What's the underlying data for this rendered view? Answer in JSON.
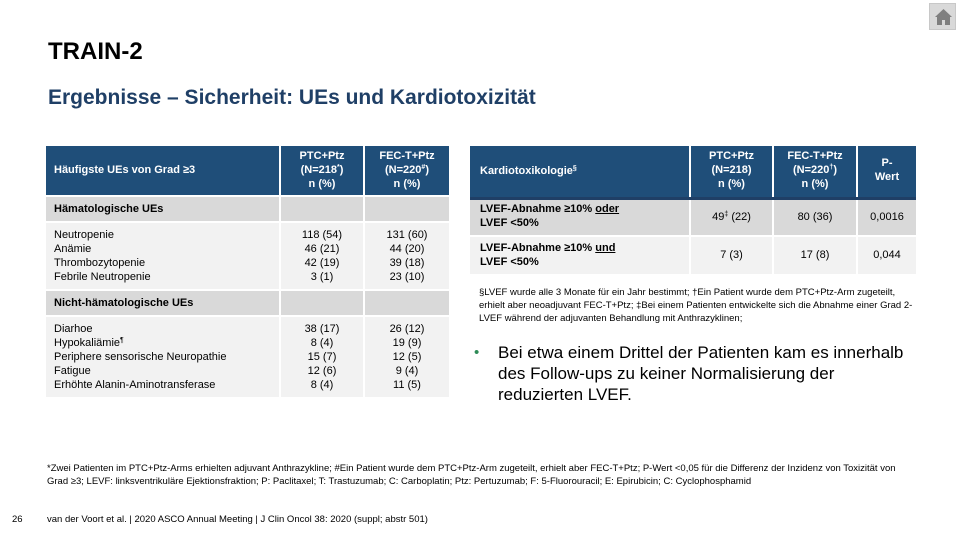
{
  "header": {
    "title": "TRAIN-2",
    "subtitle": "Ergebnisse – Sicherheit: UEs und Kardiotoxizität",
    "home_icon": "home-icon"
  },
  "ae_table": {
    "headers": {
      "col1": "Häufigste UEs von Grad ≥3",
      "col2_line1": "PTC+Ptz",
      "col2_line2_pre": "(N=218",
      "col2_line2_sup": "*",
      "col2_line2_post": ")",
      "col2_line3": "n (%)",
      "col3_line1": "FEC-T+Ptz",
      "col3_line2_pre": "(N=220",
      "col3_line2_sup": "#",
      "col3_line2_post": ")",
      "col3_line3": "n (%)"
    },
    "sections": [
      {
        "title": "Hämatologische UEs",
        "rows": [
          {
            "label": "Neutropenie",
            "sup": "",
            "ptc": "118 (54)",
            "fec": "131 (60)"
          },
          {
            "label": "Anämie",
            "sup": "",
            "ptc": "46 (21)",
            "fec": "44 (20)"
          },
          {
            "label": "Thrombozytopenie",
            "sup": "",
            "ptc": "42 (19)",
            "fec": "39 (18)"
          },
          {
            "label": "Febrile Neutropenie",
            "sup": "",
            "ptc": "3 (1)",
            "fec": "23 (10)"
          }
        ]
      },
      {
        "title": "Nicht-hämatologische UEs",
        "rows": [
          {
            "label": "Diarhoe",
            "sup": "",
            "ptc": "38 (17)",
            "fec": "26 (12)"
          },
          {
            "label": "Hypokaliämie",
            "sup": "¶",
            "ptc": "8 (4)",
            "fec": "19 (9)"
          },
          {
            "label": "Periphere sensorische Neuropathie",
            "sup": "",
            "ptc": "15 (7)",
            "fec": "12 (5)"
          },
          {
            "label": "Fatigue",
            "sup": "",
            "ptc": "12 (6)",
            "fec": "9 (4)"
          },
          {
            "label": "Erhöhte Alanin-Aminotransferase",
            "sup": "",
            "ptc": "8 (4)",
            "fec": "11 (5)"
          }
        ]
      }
    ]
  },
  "cardio_table": {
    "headers": {
      "col1": "Kardiotoxikologie",
      "col1_sup": "§",
      "col2_line1": "PTC+Ptz",
      "col2_line2": "(N=218)",
      "col2_line3": "n (%)",
      "col3_line1": "FEC-T+Ptz",
      "col3_line2_pre": "(N=220",
      "col3_line2_sup": "†",
      "col3_line2_post": ")",
      "col3_line3": "n (%)",
      "col4_line1": "P-",
      "col4_line2": "Wert"
    },
    "rows": [
      {
        "label_pre": "LVEF-Abnahme ≥10% ",
        "label_u": "oder",
        "label_post": "LVEF <50%",
        "ptc_val": "49",
        "ptc_sup": "‡",
        "ptc_rest": " (22)",
        "fec": "80 (36)",
        "p": "0,0016"
      },
      {
        "label_pre": "LVEF-Abnahme ≥10% ",
        "label_u": "und",
        "label_post": "LVEF <50%",
        "ptc_val": "7 (3)",
        "ptc_sup": "",
        "ptc_rest": "",
        "fec": "17 (8)",
        "p": "0,044"
      }
    ],
    "footnote": "§LVEF wurde alle 3 Monate für ein Jahr bestimmt; †Ein Patient wurde dem PTC+Ptz-Arm zugeteilt, erhielt aber neoadjuvant FEC-T+Ptz; ‡Bei einem Patienten entwickelte sich die Abnahme einer Grad 2-LVEF während der adjuvanten Behandlung mit Anthrazyklinen;"
  },
  "bullet": {
    "symbol": "•",
    "text": "Bei etwa einem Drittel der Patienten kam es innerhalb des Follow-ups zu keiner Normalisierung der reduzierten LVEF."
  },
  "footer": {
    "footnote": "*Zwei Patienten im PTC+Ptz-Arms erhielten adjuvant Anthrazykline; #Ein Patient wurde dem PTC+Ptz-Arm zugeteilt, erhielt aber FEC-T+Ptz; P-Wert <0,05 für die Differenz der Inzidenz von Toxizität von Grad ≥3; LEVF: linksventrikuläre Ejektionsfraktion; P: Paclitaxel; T: Trastuzumab; C: Carboplatin; Ptz: Pertuzumab; F: 5-Fluorouracil; E: Epirubicin; C: Cyclophosphamid",
    "page_number": "26",
    "citation": "van der Voort et al. | 2020 ASCO Annual Meeting | J Clin Oncol 38: 2020 (suppl; abstr 501)"
  }
}
